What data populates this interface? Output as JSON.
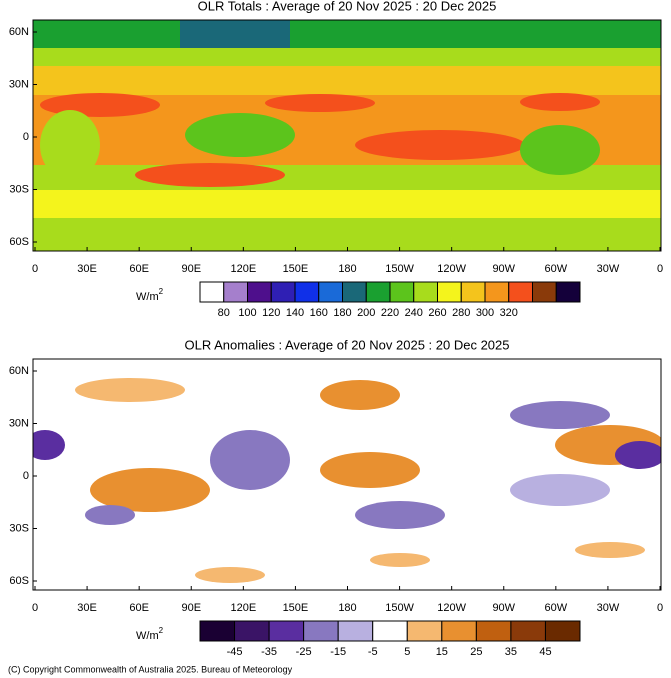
{
  "panels": [
    {
      "title": "OLR Totals : Average of 20 Nov 2025 : 20 Dec 2025",
      "lat_labels": [
        "60N",
        "30N",
        "0",
        "30S",
        "60S"
      ],
      "lon_labels": [
        "0",
        "30E",
        "60E",
        "90E",
        "120E",
        "150E",
        "180",
        "150W",
        "120W",
        "90W",
        "60W",
        "30W",
        "0"
      ],
      "colorbar": {
        "unit": "W/m",
        "unit_sup": "2",
        "labels": [
          "80",
          "100",
          "120",
          "140",
          "160",
          "180",
          "200",
          "220",
          "240",
          "260",
          "280",
          "300",
          "320"
        ],
        "colors": [
          "#ffffff",
          "#a57fcc",
          "#4e0f8c",
          "#2f1fb4",
          "#1030e8",
          "#1a6ad8",
          "#1a6878",
          "#1aa030",
          "#5cc41c",
          "#a8dc1c",
          "#f4f41c",
          "#f4c41c",
          "#f4961c",
          "#f4501c",
          "#8a3a0a",
          "#14003a"
        ]
      }
    },
    {
      "title": "OLR Anomalies : Average of 20 Nov 2025 : 20 Dec 2025",
      "lat_labels": [
        "60N",
        "30N",
        "0",
        "30S",
        "60S"
      ],
      "lon_labels": [
        "0",
        "30E",
        "60E",
        "90E",
        "120E",
        "150E",
        "180",
        "150W",
        "120W",
        "90W",
        "60W",
        "30W",
        "0"
      ],
      "colorbar": {
        "unit": "W/m",
        "unit_sup": "2",
        "labels": [
          "-45",
          "-35",
          "-25",
          "-15",
          "-5",
          "5",
          "15",
          "25",
          "35",
          "45"
        ],
        "colors": [
          "#1a0033",
          "#3a1466",
          "#5a2ea0",
          "#8878c0",
          "#b8b0e0",
          "#ffffff",
          "#f5b870",
          "#e89030",
          "#c06010",
          "#8a3a0a",
          "#6a2a00"
        ]
      }
    }
  ],
  "footer": "(C) Copyright Commonwealth of Australia 2025. Bureau of Meteorology"
}
